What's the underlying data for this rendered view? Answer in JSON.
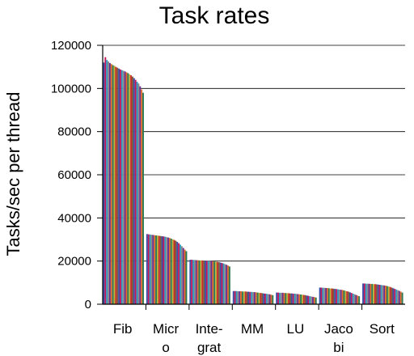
{
  "chart_data": {
    "type": "bar",
    "title": "Task rates",
    "xlabel": "",
    "ylabel": "Tasks/sec per thread",
    "ylim": [
      0,
      120000
    ],
    "yticks": [
      "0",
      "20000",
      "40000",
      "60000",
      "80000",
      "100000",
      "120000"
    ],
    "ytick_values": [
      0,
      20000,
      40000,
      60000,
      80000,
      100000,
      120000
    ],
    "grid": true,
    "legend": "none",
    "categories": [
      {
        "lines": [
          "Fib"
        ],
        "values": [
          112000,
          114500,
          113200,
          112500,
          111800,
          111300,
          110800,
          110500,
          110000,
          109600,
          109200,
          108800,
          108500,
          108200,
          107900,
          107500,
          107100,
          106600,
          106100,
          105500,
          104800,
          104000,
          103100,
          102300,
          101000,
          99500,
          98000
        ]
      },
      {
        "lines": [
          "Micr",
          "o"
        ],
        "values": [
          32500,
          32400,
          32300,
          32200,
          32100,
          32000,
          31900,
          31800,
          31700,
          31600,
          31500,
          31400,
          31300,
          31100,
          30900,
          30700,
          30400,
          30100,
          29800,
          29400,
          28900,
          28300,
          27600,
          26900,
          26100,
          25300,
          24600
        ]
      },
      {
        "lines": [
          "Inte-",
          "grat"
        ],
        "values": [
          20600,
          20600,
          20500,
          20500,
          20400,
          20400,
          20300,
          20300,
          20300,
          20200,
          20200,
          20100,
          20100,
          20000,
          20000,
          19900,
          19800,
          19700,
          19600,
          19500,
          19300,
          19100,
          18900,
          18600,
          18300,
          17900,
          17500
        ]
      },
      {
        "lines": [
          "MM"
        ],
        "values": [
          6100,
          6100,
          6100,
          6000,
          6000,
          6000,
          5900,
          5900,
          5900,
          5800,
          5800,
          5700,
          5700,
          5600,
          5600,
          5500,
          5400,
          5300,
          5200,
          5100,
          5000,
          4900,
          4800,
          4700,
          4600,
          4400,
          4200
        ]
      },
      {
        "lines": [
          "LU"
        ],
        "values": [
          5400,
          5400,
          5300,
          5300,
          5300,
          5200,
          5200,
          5100,
          5100,
          5000,
          5000,
          4900,
          4900,
          4800,
          4700,
          4600,
          4500,
          4400,
          4300,
          4200,
          4000,
          3900,
          3700,
          3600,
          3400,
          3300,
          3100
        ]
      },
      {
        "lines": [
          "Jaco",
          "bi"
        ],
        "values": [
          7700,
          7700,
          7600,
          7600,
          7500,
          7500,
          7400,
          7300,
          7300,
          7200,
          7100,
          7000,
          6900,
          6800,
          6700,
          6600,
          6400,
          6200,
          6000,
          5800,
          5500,
          5200,
          4900,
          4600,
          4300,
          4000,
          3700
        ]
      },
      {
        "lines": [
          "Sort"
        ],
        "values": [
          9600,
          9600,
          9500,
          9500,
          9500,
          9400,
          9400,
          9300,
          9300,
          9200,
          9100,
          9000,
          8900,
          8800,
          8700,
          8600,
          8400,
          8200,
          8000,
          7700,
          7400,
          7100,
          6800,
          6500,
          6200,
          5800,
          5400
        ]
      }
    ],
    "bar_colors": [
      "#3a4ea8",
      "#c2185b",
      "#2e9bc0",
      "#8a8a8a",
      "#6b2d8f",
      "#e06a2a",
      "#2a7a55",
      "#b8b03a",
      "#cc2a2a",
      "#7a5c3a"
    ]
  }
}
